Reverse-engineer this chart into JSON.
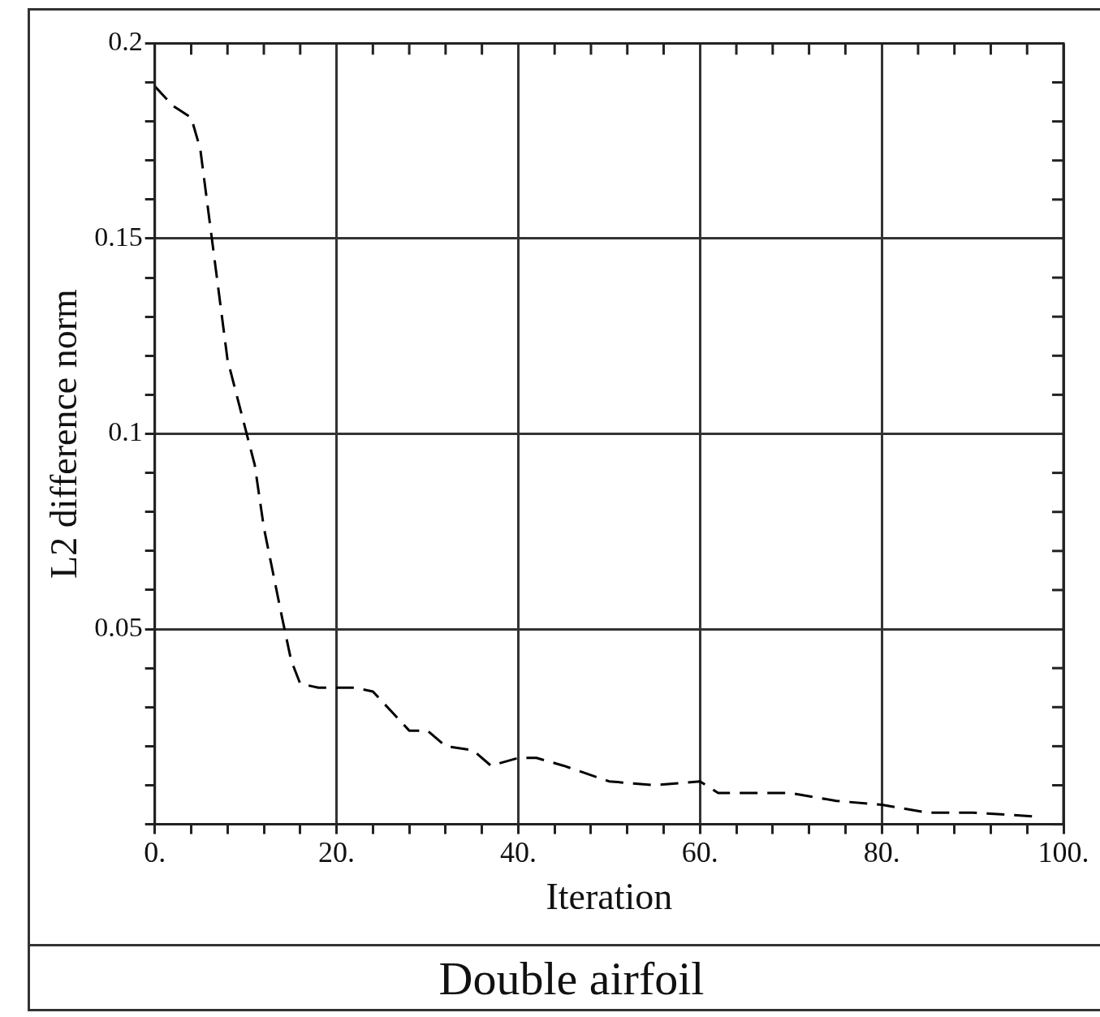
{
  "chart_data": {
    "type": "line",
    "title": "Double airfoil",
    "xlabel": "Iteration",
    "ylabel": "L2 difference norm",
    "x": [
      0,
      2,
      4,
      5,
      6,
      8,
      10,
      11,
      12,
      14,
      15,
      16,
      18,
      20,
      22,
      24,
      26,
      28,
      30,
      32,
      35,
      37,
      40,
      42,
      45,
      50,
      55,
      60,
      62,
      66,
      70,
      75,
      80,
      85,
      90,
      97
    ],
    "series": [
      {
        "color": "#000000",
        "values": [
          0.189,
          0.184,
          0.181,
          0.173,
          0.155,
          0.119,
          0.101,
          0.092,
          0.076,
          0.053,
          0.042,
          0.036,
          0.035,
          0.035,
          0.035,
          0.034,
          0.029,
          0.024,
          0.024,
          0.02,
          0.019,
          0.015,
          0.017,
          0.017,
          0.015,
          0.011,
          0.01,
          0.011,
          0.008,
          0.008,
          0.008,
          0.006,
          0.005,
          0.003,
          0.003,
          0.002
        ]
      }
    ],
    "xlim": [
      0,
      100
    ],
    "ylim": [
      0,
      0.2
    ],
    "xticks": [
      {
        "value": 0,
        "label": "0."
      },
      {
        "value": 4,
        "label": null
      },
      {
        "value": 8,
        "label": null
      },
      {
        "value": 12,
        "label": null
      },
      {
        "value": 16,
        "label": null
      },
      {
        "value": 20,
        "label": "20."
      },
      {
        "value": 24,
        "label": null
      },
      {
        "value": 28,
        "label": null
      },
      {
        "value": 32,
        "label": null
      },
      {
        "value": 36,
        "label": null
      },
      {
        "value": 40,
        "label": "40."
      },
      {
        "value": 44,
        "label": null
      },
      {
        "value": 48,
        "label": null
      },
      {
        "value": 52,
        "label": null
      },
      {
        "value": 56,
        "label": null
      },
      {
        "value": 60,
        "label": "60."
      },
      {
        "value": 64,
        "label": null
      },
      {
        "value": 68,
        "label": null
      },
      {
        "value": 72,
        "label": null
      },
      {
        "value": 76,
        "label": null
      },
      {
        "value": 80,
        "label": "80."
      },
      {
        "value": 84,
        "label": null
      },
      {
        "value": 88,
        "label": null
      },
      {
        "value": 92,
        "label": null
      },
      {
        "value": 96,
        "label": null
      },
      {
        "value": 100,
        "label": "100."
      }
    ],
    "yticks": [
      {
        "value": 0,
        "label": null
      },
      {
        "value": 0.01,
        "label": null
      },
      {
        "value": 0.02,
        "label": null
      },
      {
        "value": 0.03,
        "label": null
      },
      {
        "value": 0.04,
        "label": null
      },
      0.05,
      {
        "value": 0.06,
        "label": null
      },
      {
        "value": 0.07,
        "label": null
      },
      {
        "value": 0.08,
        "label": null
      },
      {
        "value": 0.09,
        "label": null
      },
      0.1,
      {
        "value": 0.11,
        "label": null
      },
      {
        "value": 0.12,
        "label": null
      },
      {
        "value": 0.13,
        "label": null
      },
      {
        "value": 0.14,
        "label": null
      },
      0.15,
      {
        "value": 0.16,
        "label": null
      },
      {
        "value": 0.17,
        "label": null
      },
      {
        "value": 0.18,
        "label": null
      },
      {
        "value": 0.19,
        "label": null
      },
      0.2
    ],
    "grid": true,
    "legend": false,
    "marker": "none",
    "line_style": "dashed"
  }
}
